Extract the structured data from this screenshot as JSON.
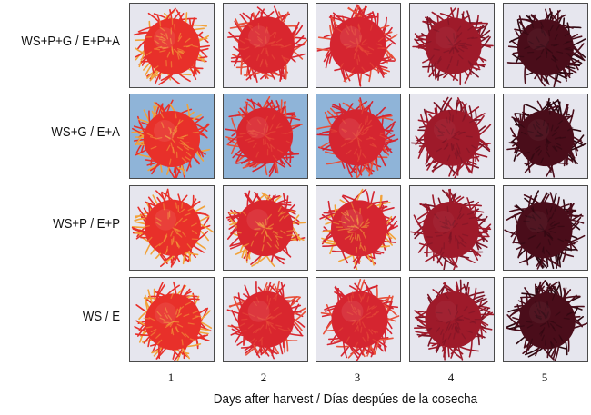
{
  "row_labels": [
    "WS+P+G / E+P+A",
    "WS+G / E+A",
    "WS+P / E+P",
    "WS / E"
  ],
  "column_labels": [
    "1",
    "2",
    "3",
    "4",
    "5"
  ],
  "x_axis_title": "Days after harvest / Días despúes de la cosecha",
  "fruit_colors": {
    "day_1": "#e8302a",
    "day_2": "#d9262e",
    "day_3": "#d52530",
    "day_4": "#9e1a2a",
    "day_5": "#4a0d1a"
  },
  "background_colors": {
    "light": "#e6e6ee",
    "blue": "#8fb4d8"
  }
}
